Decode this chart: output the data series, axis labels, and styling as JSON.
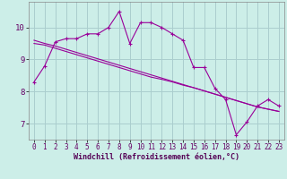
{
  "xlabel": "Windchill (Refroidissement éolien,°C)",
  "background_color": "#cceee8",
  "line_color": "#990099",
  "grid_color": "#aacece",
  "x_ticks": [
    0,
    1,
    2,
    3,
    4,
    5,
    6,
    7,
    8,
    9,
    10,
    11,
    12,
    13,
    14,
    15,
    16,
    17,
    18,
    19,
    20,
    21,
    22,
    23
  ],
  "y_ticks": [
    7,
    8,
    9,
    10
  ],
  "ylim": [
    6.5,
    10.8
  ],
  "xlim": [
    -0.5,
    23.5
  ],
  "series1_x": [
    0,
    1,
    2,
    3,
    4,
    5,
    6,
    7,
    8,
    9,
    10,
    11,
    12,
    13,
    14,
    15,
    16,
    17,
    18,
    19,
    20,
    21,
    22,
    23
  ],
  "series1_y": [
    8.3,
    8.8,
    9.55,
    9.65,
    9.65,
    9.8,
    9.8,
    10.0,
    10.5,
    9.5,
    10.15,
    10.15,
    10.0,
    9.8,
    9.6,
    8.75,
    8.75,
    8.1,
    7.75,
    6.65,
    7.05,
    7.55,
    7.75,
    7.55
  ],
  "series2_x": [
    0,
    1,
    2,
    3,
    4,
    5,
    6,
    7,
    8,
    9,
    10,
    11,
    12,
    13,
    14,
    15,
    16,
    17,
    18,
    19,
    20,
    21,
    22,
    23
  ],
  "series2_y": [
    9.5,
    9.45,
    9.35,
    9.25,
    9.15,
    9.05,
    8.95,
    8.85,
    8.75,
    8.65,
    8.55,
    8.45,
    8.38,
    8.3,
    8.2,
    8.12,
    8.02,
    7.92,
    7.82,
    7.72,
    7.62,
    7.52,
    7.45,
    7.38
  ],
  "series3_x": [
    0,
    1,
    2,
    3,
    4,
    5,
    6,
    7,
    8,
    9,
    10,
    11,
    12,
    13,
    14,
    15,
    16,
    17,
    18,
    19,
    20,
    21,
    22,
    23
  ],
  "series3_y": [
    9.6,
    9.5,
    9.42,
    9.32,
    9.22,
    9.12,
    9.02,
    8.92,
    8.82,
    8.72,
    8.62,
    8.52,
    8.42,
    8.32,
    8.22,
    8.12,
    8.02,
    7.92,
    7.82,
    7.72,
    7.62,
    7.52,
    7.45,
    7.38
  ]
}
